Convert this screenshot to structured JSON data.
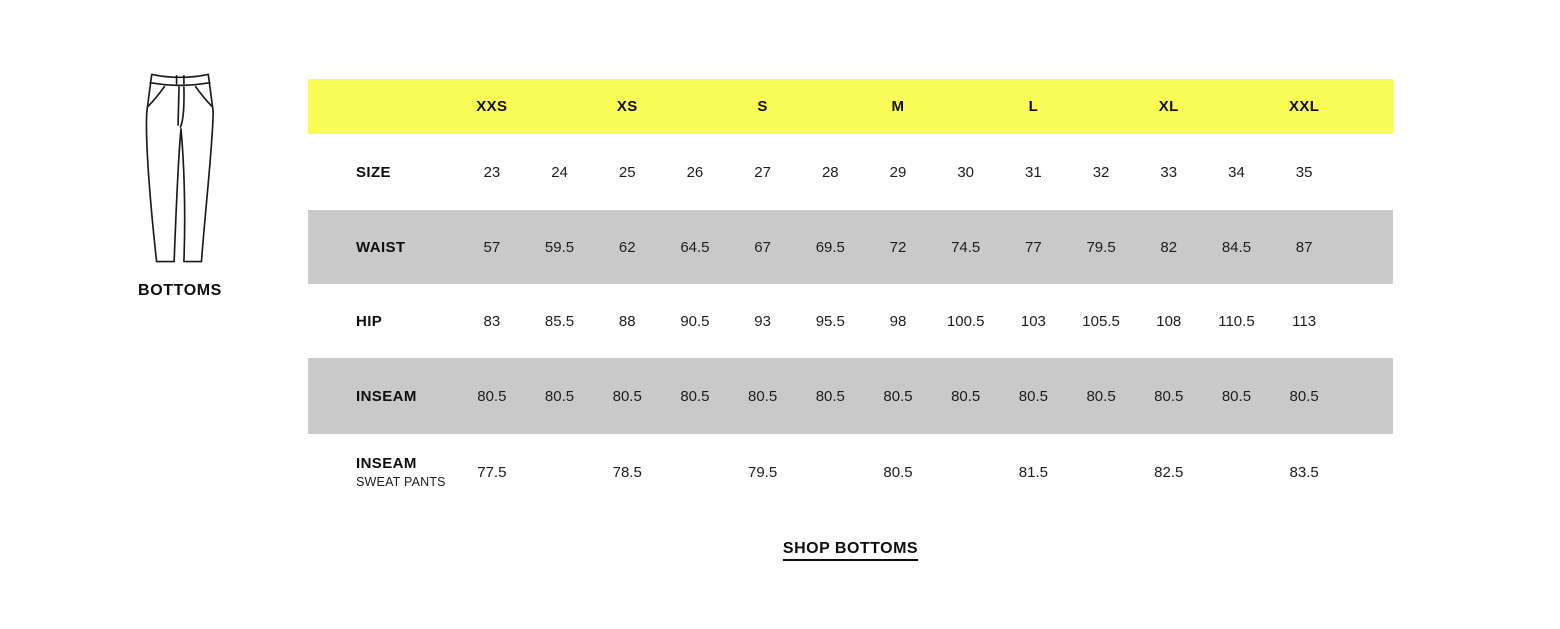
{
  "figure": {
    "label": "BOTTOMS",
    "icon": "pants-icon"
  },
  "table": {
    "header": {
      "labels": [
        "XXS",
        "XS",
        "S",
        "M",
        "L",
        "XL",
        "XXL"
      ],
      "background": "#FAFB55"
    },
    "stripe_color": "#C9C9C9",
    "text_color": "#161616",
    "rows": [
      {
        "label": "SIZE",
        "sublabel": "",
        "shaded": false,
        "values": [
          "23",
          "24",
          "25",
          "26",
          "27",
          "28",
          "29",
          "30",
          "31",
          "32",
          "33",
          "34",
          "35"
        ]
      },
      {
        "label": "WAIST",
        "sublabel": "",
        "shaded": true,
        "values": [
          "57",
          "59.5",
          "62",
          "64.5",
          "67",
          "69.5",
          "72",
          "74.5",
          "77",
          "79.5",
          "82",
          "84.5",
          "87"
        ]
      },
      {
        "label": "HIP",
        "sublabel": "",
        "shaded": false,
        "values": [
          "83",
          "85.5",
          "88",
          "90.5",
          "93",
          "95.5",
          "98",
          "100.5",
          "103",
          "105.5",
          "108",
          "110.5",
          "113"
        ]
      },
      {
        "label": "INSEAM",
        "sublabel": "",
        "shaded": true,
        "values": [
          "80.5",
          "80.5",
          "80.5",
          "80.5",
          "80.5",
          "80.5",
          "80.5",
          "80.5",
          "80.5",
          "80.5",
          "80.5",
          "80.5",
          "80.5"
        ]
      },
      {
        "label": "INSEAM",
        "sublabel": "SWEAT PANTS",
        "shaded": false,
        "values": [
          "77.5",
          "",
          "78.5",
          "",
          "79.5",
          "",
          "80.5",
          "",
          "81.5",
          "",
          "82.5",
          "",
          "83.5"
        ]
      }
    ]
  },
  "link": {
    "label": "SHOP BOTTOMS"
  }
}
